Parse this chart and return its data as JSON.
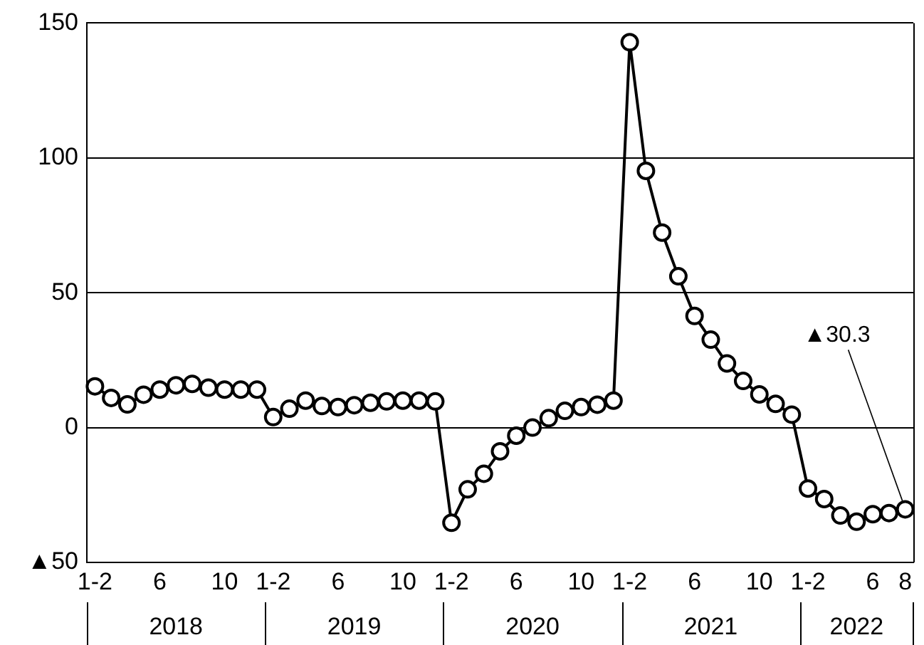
{
  "chart_data": {
    "type": "line",
    "categories": [
      "1-2",
      null,
      null,
      null,
      "6",
      null,
      null,
      null,
      "10",
      null,
      null,
      "1-2",
      null,
      null,
      null,
      "6",
      null,
      null,
      null,
      "10",
      null,
      null,
      "1-2",
      null,
      null,
      null,
      "6",
      null,
      null,
      null,
      "10",
      null,
      null,
      "1-2",
      null,
      null,
      null,
      "6",
      null,
      null,
      null,
      "10",
      null,
      null,
      "1-2",
      null,
      null,
      null,
      "6",
      null,
      "8"
    ],
    "series": [
      {
        "color": "#000000",
        "values": [
          15.3,
          11,
          8.6,
          12.2,
          14.1,
          15.7,
          16.2,
          14.8,
          14.1,
          14.1,
          14.1,
          3.9,
          7,
          10,
          8,
          7.6,
          8.3,
          9.2,
          9.7,
          10,
          10,
          9.7,
          -35.3,
          -22.9,
          -17.1,
          -8.8,
          -3,
          0,
          3.5,
          6.2,
          7.6,
          8.5,
          10,
          142.9,
          95.2,
          72.3,
          56.1,
          41.4,
          32.6,
          23.8,
          17.3,
          12.3,
          8.8,
          4.8,
          -22.6,
          -26.5,
          -32.6,
          -34.9,
          -32.1,
          -31.7,
          -30.3
        ]
      }
    ],
    "ylim": [
      -50,
      150
    ],
    "yticks": [
      {
        "value": -50,
        "label": "▲50"
      },
      0,
      50,
      100,
      150
    ],
    "grid": "y",
    "marker": "circle",
    "line_style": "solid",
    "legend": false,
    "annotations": [
      "2018",
      "2019",
      "2020",
      "2021",
      "2022",
      {
        "text": "▲30.3",
        "x": "8",
        "y": -30.3
      }
    ]
  }
}
